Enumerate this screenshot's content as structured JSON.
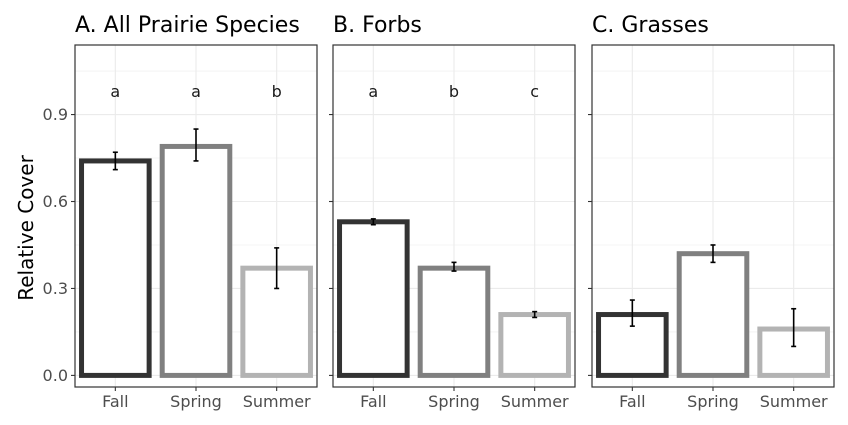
{
  "chart_data": {
    "type": "bar",
    "ylabel": "Relative Cover",
    "yticks": [
      0.0,
      0.3,
      0.6,
      0.9
    ],
    "ytick_labels": [
      "0.0",
      "0.3",
      "0.6",
      "0.9"
    ],
    "ylim": [
      -0.04,
      1.14
    ],
    "grid": true,
    "categories": [
      "Fall",
      "Spring",
      "Summer"
    ],
    "colors": [
      "#333333",
      "#808080",
      "#b3b3b3"
    ],
    "panels": [
      {
        "title": "A. All Prairie Species",
        "values": [
          0.74,
          0.79,
          0.37
        ],
        "error_low": [
          0.71,
          0.74,
          0.3
        ],
        "error_high": [
          0.77,
          0.85,
          0.44
        ],
        "letters": [
          "a",
          "a",
          "b"
        ]
      },
      {
        "title": "B. Forbs",
        "values": [
          0.53,
          0.37,
          0.21
        ],
        "error_low": [
          0.52,
          0.36,
          0.2
        ],
        "error_high": [
          0.54,
          0.39,
          0.22
        ],
        "letters": [
          "a",
          "b",
          "c"
        ]
      },
      {
        "title": "C. Grasses",
        "values": [
          0.21,
          0.42,
          0.16
        ],
        "error_low": [
          0.17,
          0.39,
          0.1
        ],
        "error_high": [
          0.26,
          0.45,
          0.23
        ],
        "letters": [
          "",
          "",
          ""
        ]
      }
    ]
  }
}
